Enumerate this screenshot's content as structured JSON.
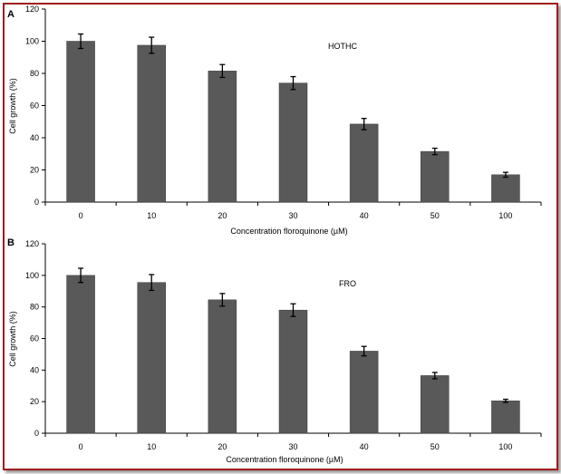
{
  "chart_data": [
    {
      "type": "bar",
      "panel_label": "A",
      "annotation": "HOTHC",
      "categories": [
        "0",
        "10",
        "20",
        "30",
        "40",
        "50",
        "100"
      ],
      "values": [
        100,
        97.5,
        81.5,
        74,
        48.5,
        31.5,
        17
      ],
      "errors": [
        4.5,
        5,
        4,
        4,
        3.5,
        2,
        1.5
      ],
      "ylim": [
        0,
        120
      ],
      "yticks": [
        "0",
        "20",
        "40",
        "60",
        "80",
        "100",
        "120"
      ],
      "xlabel": "Concentration floroquinone (µM)",
      "ylabel": "Cell growth (%)",
      "bar_color": "#595959",
      "grid": false
    },
    {
      "type": "bar",
      "panel_label": "B",
      "annotation": "FRO",
      "categories": [
        "0",
        "10",
        "20",
        "30",
        "40",
        "50",
        "100"
      ],
      "values": [
        100,
        95.5,
        84.5,
        78,
        52,
        36.5,
        20.5
      ],
      "errors": [
        4.5,
        5,
        4,
        4,
        3,
        2,
        1
      ],
      "ylim": [
        0,
        120
      ],
      "yticks": [
        "0",
        "20",
        "40",
        "60",
        "80",
        "100",
        "120"
      ],
      "xlabel": "Concentration floroquinone (µM)",
      "ylabel": "Cell growth (%)",
      "bar_color": "#595959",
      "grid": false
    }
  ]
}
